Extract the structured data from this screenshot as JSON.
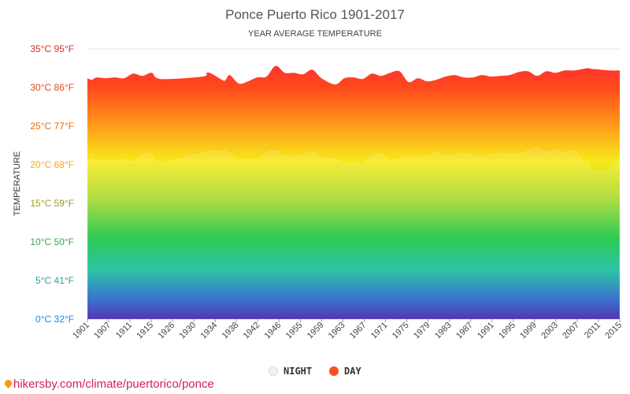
{
  "chart_data": {
    "type": "area",
    "title": "Ponce Puerto Rico 1901-2017",
    "subtitle": "YEAR AVERAGE TEMPERATURE",
    "ylabel": "TEMPERATURE",
    "ylim": [
      0,
      35
    ],
    "xlim": [
      1901,
      2017
    ],
    "grid": true,
    "legend_position": "bottom",
    "y_ticks": [
      {
        "value": 0,
        "label": "0°C 32°F",
        "color": "#1e88e5"
      },
      {
        "value": 5,
        "label": "5°C 41°F",
        "color": "#26a69a"
      },
      {
        "value": 10,
        "label": "10°C 50°F",
        "color": "#43a047"
      },
      {
        "value": 15,
        "label": "15°C 59°F",
        "color": "#9e9d24"
      },
      {
        "value": 20,
        "label": "20°C 68°F",
        "color": "#f9a825"
      },
      {
        "value": 25,
        "label": "25°C 77°F",
        "color": "#ef6c00"
      },
      {
        "value": 30,
        "label": "30°C 86°F",
        "color": "#e64a19"
      },
      {
        "value": 35,
        "label": "35°C 95°F",
        "color": "#d32f2f"
      }
    ],
    "x_ticks": [
      "1901",
      "1907",
      "1911",
      "1915",
      "1926",
      "1930",
      "1934",
      "1938",
      "1942",
      "1946",
      "1955",
      "1959",
      "1963",
      "1967",
      "1971",
      "1975",
      "1979",
      "1983",
      "1987",
      "1991",
      "1995",
      "1999",
      "2003",
      "2007",
      "2011",
      "2015"
    ],
    "series": [
      {
        "name": "NIGHT",
        "color": "#e8e8e8",
        "x": [
          1901,
          1902,
          1903,
          1905,
          1907,
          1909,
          1911,
          1913,
          1915,
          1917,
          1926,
          1927,
          1928,
          1930,
          1931,
          1932,
          1934,
          1936,
          1938,
          1940,
          1942,
          1944,
          1946,
          1948,
          1950,
          1952,
          1955,
          1957,
          1959,
          1961,
          1963,
          1965,
          1967,
          1969,
          1971,
          1973,
          1975,
          1977,
          1979,
          1981,
          1983,
          1985,
          1987,
          1989,
          1991,
          1993,
          1995,
          1997,
          1999,
          2001,
          2003,
          2005,
          2007,
          2009,
          2010,
          2011,
          2013,
          2015,
          2017
        ],
        "values": [
          20.4,
          20.8,
          20.5,
          20.6,
          20.4,
          20.7,
          20.3,
          21.2,
          21.4,
          20.2,
          21.5,
          21.6,
          21.8,
          21.7,
          21.9,
          21.4,
          20.6,
          20.8,
          20.6,
          21.6,
          21.8,
          21.2,
          21.1,
          21.3,
          21.6,
          20.9,
          20.7,
          20.1,
          20.3,
          20.1,
          21.2,
          21.4,
          20.6,
          20.8,
          21.1,
          20.9,
          21.2,
          21.6,
          21.1,
          21.3,
          21.5,
          21.2,
          21.0,
          21.3,
          21.5,
          21.3,
          21.4,
          21.8,
          22.2,
          21.6,
          21.9,
          21.5,
          21.8,
          20.5,
          20.4,
          19.3,
          19.1,
          19.6,
          21.0
        ]
      },
      {
        "name": "DAY",
        "color": "#f4511e",
        "x": [
          1901,
          1902,
          1903,
          1905,
          1907,
          1909,
          1911,
          1913,
          1915,
          1917,
          1926,
          1927,
          1928,
          1930,
          1931,
          1932,
          1934,
          1936,
          1938,
          1940,
          1942,
          1944,
          1946,
          1948,
          1950,
          1952,
          1955,
          1957,
          1959,
          1961,
          1963,
          1965,
          1967,
          1969,
          1971,
          1973,
          1975,
          1977,
          1979,
          1981,
          1983,
          1985,
          1987,
          1989,
          1991,
          1993,
          1995,
          1997,
          1999,
          2001,
          2003,
          2005,
          2007,
          2009,
          2010,
          2011,
          2013,
          2015,
          2017
        ],
        "values": [
          31.2,
          31.0,
          31.3,
          31.2,
          31.3,
          31.2,
          31.8,
          31.5,
          31.9,
          31.1,
          31.4,
          31.9,
          31.8,
          31.1,
          30.9,
          31.6,
          30.5,
          30.8,
          31.3,
          31.4,
          32.8,
          31.9,
          31.9,
          31.7,
          32.3,
          31.2,
          30.4,
          31.2,
          31.3,
          31.1,
          31.8,
          31.5,
          31.9,
          32.1,
          30.7,
          31.2,
          30.8,
          31.0,
          31.4,
          31.6,
          31.3,
          31.3,
          31.6,
          31.4,
          31.5,
          31.6,
          32.0,
          32.1,
          31.5,
          32.1,
          31.9,
          32.2,
          32.2,
          32.4,
          32.5,
          32.4,
          32.3,
          32.2,
          32.2
        ]
      }
    ]
  },
  "watermark": {
    "text": "hikersby.com/climate/puertorico/ponce",
    "icon": "map-pin-icon"
  }
}
